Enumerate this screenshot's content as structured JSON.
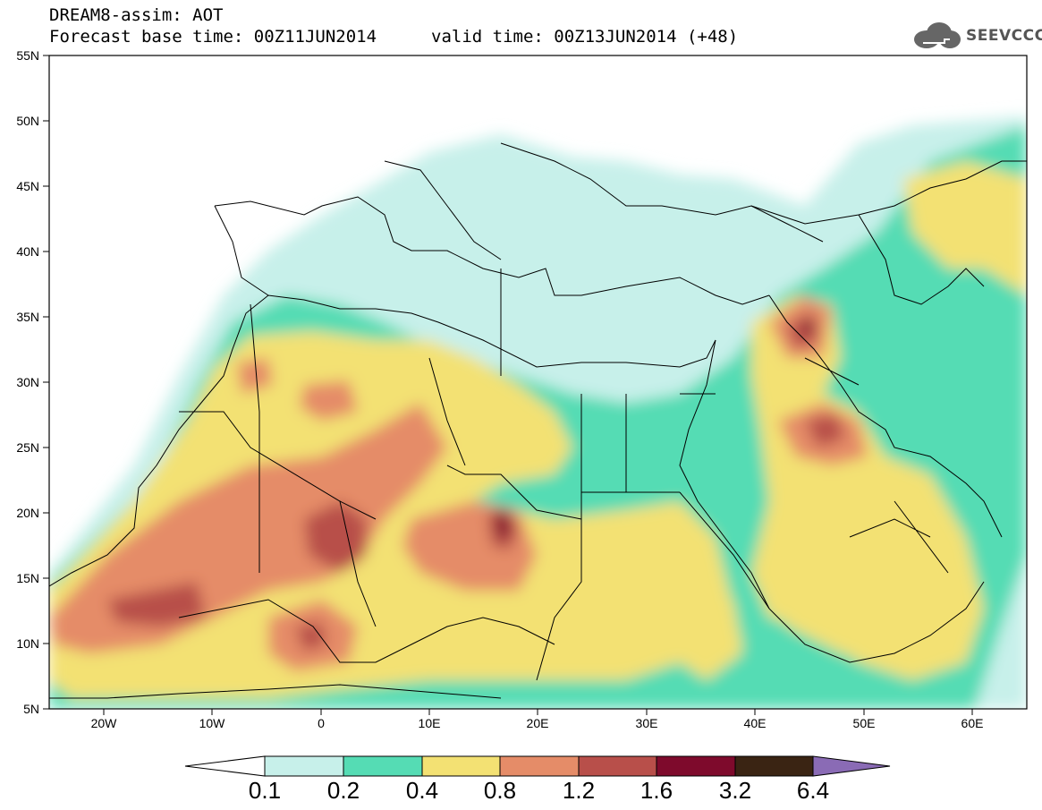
{
  "header": {
    "line1": "DREAM8-assim: AOT",
    "line2": "Forecast base time: 00Z11JUN2014",
    "line3": "valid time: 00Z13JUN2014 (+48)"
  },
  "logo": {
    "text": "SEEVCCC",
    "icon": "cloud-icon"
  },
  "axes": {
    "lat_labels": [
      "55N",
      "50N",
      "45N",
      "40N",
      "35N",
      "30N",
      "25N",
      "20N",
      "15N",
      "10N",
      "5N"
    ],
    "lon_labels": [
      "20W",
      "10W",
      "0",
      "10E",
      "20E",
      "30E",
      "40E",
      "50E",
      "60E"
    ]
  },
  "colorbar": {
    "labels": [
      "0.1",
      "0.2",
      "0.4",
      "0.8",
      "1.2",
      "1.6",
      "3.2",
      "6.4"
    ],
    "colors": [
      "#c7f0ea",
      "#55dcb4",
      "#f3e173",
      "#e58c68",
      "#b84f4a",
      "#7e0a2c",
      "#3a2413",
      "#8a6bb5"
    ]
  },
  "map": {
    "extent_lon": [
      -25,
      65
    ],
    "extent_lat": [
      5,
      55
    ],
    "variable": "AOT"
  }
}
